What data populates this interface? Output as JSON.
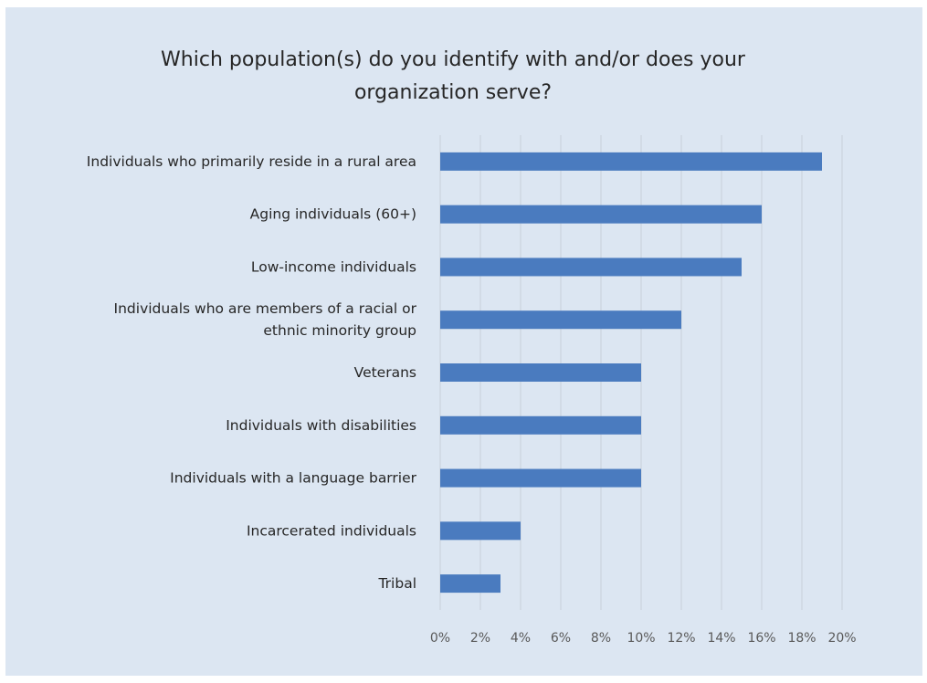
{
  "chart_data": {
    "type": "bar",
    "orientation": "horizontal",
    "title_lines": [
      "Which population(s) do you identify with and/or does your",
      "organization serve?"
    ],
    "categories": [
      [
        "Individuals who primarily reside in a rural area"
      ],
      [
        "Aging individuals (60+)"
      ],
      [
        "Low-income individuals"
      ],
      [
        "Individuals who are members of a racial or",
        "ethnic minority group"
      ],
      [
        "Veterans"
      ],
      [
        "Individuals with disabilities"
      ],
      [
        "Individuals with a language barrier"
      ],
      [
        "Incarcerated individuals"
      ],
      [
        "Tribal"
      ]
    ],
    "values": [
      19,
      16,
      15,
      12,
      10,
      10,
      10,
      4,
      3
    ],
    "xlim": [
      0,
      20
    ],
    "x_ticks": [
      0,
      2,
      4,
      6,
      8,
      10,
      12,
      14,
      16,
      18,
      20
    ],
    "x_tick_suffix": "%",
    "grid": "vertical",
    "legend": "none",
    "colors": {
      "bar": "#4a7bbf",
      "background": "#dce6f2",
      "grid": "#c8d0da",
      "text": "#262626",
      "tick_text": "#595959"
    }
  }
}
